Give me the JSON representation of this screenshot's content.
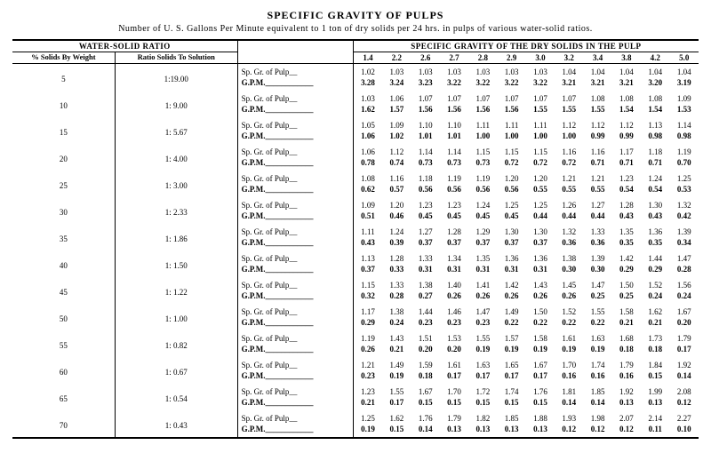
{
  "title": "SPECIFIC GRAVITY OF PULPS",
  "subtitle": "Number of U. S. Gallons Per Minute equivalent to 1 ton of dry solids per 24 hrs. in pulps of various water-solid ratios.",
  "headers": {
    "water_solid": "WATER-SOLID RATIO",
    "sg_dry": "SPECIFIC GRAVITY OF THE DRY SOLIDS IN THE PULP",
    "pct_solids": "% Solids By Weight",
    "ratio_solids": "Ratio Solids To Solution",
    "row1": "Sp. Gr. of Pulp__",
    "row2": "G.P.M.____________"
  },
  "sg_cols": [
    "1.4",
    "2.2",
    "2.6",
    "2.7",
    "2.8",
    "2.9",
    "3.0",
    "3.2",
    "3.4",
    "3.8",
    "4.2",
    "5.0"
  ],
  "rows": [
    {
      "pct": "5",
      "ratio": "1:19.00",
      "spgr": [
        "1.02",
        "1.03",
        "1.03",
        "1.03",
        "1.03",
        "1.03",
        "1.03",
        "1.04",
        "1.04",
        "1.04",
        "1.04",
        "1.04"
      ],
      "gpm": [
        "3.28",
        "3.24",
        "3.23",
        "3.22",
        "3.22",
        "3.22",
        "3.22",
        "3.21",
        "3.21",
        "3.21",
        "3.20",
        "3.19"
      ]
    },
    {
      "pct": "10",
      "ratio": "1: 9.00",
      "spgr": [
        "1.03",
        "1.06",
        "1.07",
        "1.07",
        "1.07",
        "1.07",
        "1.07",
        "1.07",
        "1.08",
        "1.08",
        "1.08",
        "1.09"
      ],
      "gpm": [
        "1.62",
        "1.57",
        "1.56",
        "1.56",
        "1.56",
        "1.56",
        "1.55",
        "1.55",
        "1.55",
        "1.54",
        "1.54",
        "1.53"
      ]
    },
    {
      "pct": "15",
      "ratio": "1: 5.67",
      "spgr": [
        "1.05",
        "1.09",
        "1.10",
        "1.10",
        "1.11",
        "1.11",
        "1.11",
        "1.12",
        "1.12",
        "1.12",
        "1.13",
        "1.14"
      ],
      "gpm": [
        "1.06",
        "1.02",
        "1.01",
        "1.01",
        "1.00",
        "1.00",
        "1.00",
        "1.00",
        "0.99",
        "0.99",
        "0.98",
        "0.98"
      ]
    },
    {
      "pct": "20",
      "ratio": "1: 4.00",
      "spgr": [
        "1.06",
        "1.12",
        "1.14",
        "1.14",
        "1.15",
        "1.15",
        "1.15",
        "1.16",
        "1.16",
        "1.17",
        "1.18",
        "1.19"
      ],
      "gpm": [
        "0.78",
        "0.74",
        "0.73",
        "0.73",
        "0.73",
        "0.72",
        "0.72",
        "0.72",
        "0.71",
        "0.71",
        "0.71",
        "0.70"
      ]
    },
    {
      "pct": "25",
      "ratio": "1: 3.00",
      "spgr": [
        "1.08",
        "1.16",
        "1.18",
        "1.19",
        "1.19",
        "1.20",
        "1.20",
        "1.21",
        "1.21",
        "1.23",
        "1.24",
        "1.25"
      ],
      "gpm": [
        "0.62",
        "0.57",
        "0.56",
        "0.56",
        "0.56",
        "0.56",
        "0.55",
        "0.55",
        "0.55",
        "0.54",
        "0.54",
        "0.53"
      ]
    },
    {
      "pct": "30",
      "ratio": "1: 2.33",
      "spgr": [
        "1.09",
        "1.20",
        "1.23",
        "1.23",
        "1.24",
        "1.25",
        "1.25",
        "1.26",
        "1.27",
        "1.28",
        "1.30",
        "1.32"
      ],
      "gpm": [
        "0.51",
        "0.46",
        "0.45",
        "0.45",
        "0.45",
        "0.45",
        "0.44",
        "0.44",
        "0.44",
        "0.43",
        "0.43",
        "0.42"
      ]
    },
    {
      "pct": "35",
      "ratio": "1: 1.86",
      "spgr": [
        "1.11",
        "1.24",
        "1.27",
        "1.28",
        "1.29",
        "1.30",
        "1.30",
        "1.32",
        "1.33",
        "1.35",
        "1.36",
        "1.39"
      ],
      "gpm": [
        "0.43",
        "0.39",
        "0.37",
        "0.37",
        "0.37",
        "0.37",
        "0.37",
        "0.36",
        "0.36",
        "0.35",
        "0.35",
        "0.34"
      ]
    },
    {
      "pct": "40",
      "ratio": "1: 1.50",
      "spgr": [
        "1.13",
        "1.28",
        "1.33",
        "1.34",
        "1.35",
        "1.36",
        "1.36",
        "1.38",
        "1.39",
        "1.42",
        "1.44",
        "1.47"
      ],
      "gpm": [
        "0.37",
        "0.33",
        "0.31",
        "0.31",
        "0.31",
        "0.31",
        "0.31",
        "0.30",
        "0.30",
        "0.29",
        "0.29",
        "0.28"
      ]
    },
    {
      "pct": "45",
      "ratio": "1: 1.22",
      "spgr": [
        "1.15",
        "1.33",
        "1.38",
        "1.40",
        "1.41",
        "1.42",
        "1.43",
        "1.45",
        "1.47",
        "1.50",
        "1.52",
        "1.56"
      ],
      "gpm": [
        "0.32",
        "0.28",
        "0.27",
        "0.26",
        "0.26",
        "0.26",
        "0.26",
        "0.26",
        "0.25",
        "0.25",
        "0.24",
        "0.24"
      ]
    },
    {
      "pct": "50",
      "ratio": "1: 1.00",
      "spgr": [
        "1.17",
        "1.38",
        "1.44",
        "1.46",
        "1.47",
        "1.49",
        "1.50",
        "1.52",
        "1.55",
        "1.58",
        "1.62",
        "1.67"
      ],
      "gpm": [
        "0.29",
        "0.24",
        "0.23",
        "0.23",
        "0.23",
        "0.22",
        "0.22",
        "0.22",
        "0.22",
        "0.21",
        "0.21",
        "0.20"
      ]
    },
    {
      "pct": "55",
      "ratio": "1: 0.82",
      "spgr": [
        "1.19",
        "1.43",
        "1.51",
        "1.53",
        "1.55",
        "1.57",
        "1.58",
        "1.61",
        "1.63",
        "1.68",
        "1.73",
        "1.79"
      ],
      "gpm": [
        "0.26",
        "0.21",
        "0.20",
        "0.20",
        "0.19",
        "0.19",
        "0.19",
        "0.19",
        "0.19",
        "0.18",
        "0.18",
        "0.17"
      ]
    },
    {
      "pct": "60",
      "ratio": "1: 0.67",
      "spgr": [
        "1.21",
        "1.49",
        "1.59",
        "1.61",
        "1.63",
        "1.65",
        "1.67",
        "1.70",
        "1.74",
        "1.79",
        "1.84",
        "1.92"
      ],
      "gpm": [
        "0.23",
        "0.19",
        "0.18",
        "0.17",
        "0.17",
        "0.17",
        "0.17",
        "0.16",
        "0.16",
        "0.16",
        "0.15",
        "0.14"
      ]
    },
    {
      "pct": "65",
      "ratio": "1: 0.54",
      "spgr": [
        "1.23",
        "1.55",
        "1.67",
        "1.70",
        "1.72",
        "1.74",
        "1.76",
        "1.81",
        "1.85",
        "1.92",
        "1.99",
        "2.08"
      ],
      "gpm": [
        "0.21",
        "0.17",
        "0.15",
        "0.15",
        "0.15",
        "0.15",
        "0.15",
        "0.14",
        "0.14",
        "0.13",
        "0.13",
        "0.12"
      ]
    },
    {
      "pct": "70",
      "ratio": "1: 0.43",
      "spgr": [
        "1.25",
        "1.62",
        "1.76",
        "1.79",
        "1.82",
        "1.85",
        "1.88",
        "1.93",
        "1.98",
        "2.07",
        "2.14",
        "2.27"
      ],
      "gpm": [
        "0.19",
        "0.15",
        "0.14",
        "0.13",
        "0.13",
        "0.13",
        "0.13",
        "0.12",
        "0.12",
        "0.12",
        "0.11",
        "0.10"
      ]
    }
  ]
}
